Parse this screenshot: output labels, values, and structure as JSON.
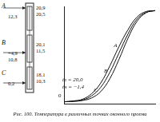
{
  "chart_data": {
    "type": "line",
    "x": [
      0,
      1,
      2,
      3,
      4,
      5,
      6,
      7,
      8,
      9,
      10
    ],
    "series": [
      {
        "name": "A",
        "color": "#111111",
        "values": [
          -1.4,
          -1.2,
          -0.8,
          0.5,
          3,
          7,
          11.5,
          15.5,
          18.5,
          19.8,
          20.0
        ]
      },
      {
        "name": "B",
        "color": "#111111",
        "values": [
          -1.4,
          -1.3,
          -1.0,
          0,
          2,
          5.5,
          10,
          14.5,
          18,
          19.6,
          20.0
        ]
      },
      {
        "name": "C",
        "color": "#111111",
        "values": [
          -1.4,
          -1.3,
          -1.1,
          -0.5,
          1,
          4,
          8.5,
          13.5,
          17.5,
          19.5,
          20.0
        ]
      }
    ],
    "xlim": [
      0,
      10
    ],
    "ylim": [
      -2,
      21
    ],
    "yticks": [
      0
    ],
    "tick_labels": "y",
    "grid": false,
    "legend": false,
    "annotations": [
      "tв = 20,0",
      "tн = −1,4"
    ]
  },
  "diagram": {
    "points": [
      {
        "name": "A",
        "outer": [
          "12,3"
        ],
        "inner": [
          "20,9",
          "20,5"
        ]
      },
      {
        "name": "B",
        "outer": [
          "+4,9",
          "10,8"
        ],
        "inner": [
          "20,1",
          "11,5"
        ]
      },
      {
        "name": "C",
        "outer": [
          "0,2"
        ],
        "inner": [
          "18,1",
          "10,3"
        ]
      }
    ]
  },
  "caption": "Рис. 100. Температура в различных точках оконного проема"
}
